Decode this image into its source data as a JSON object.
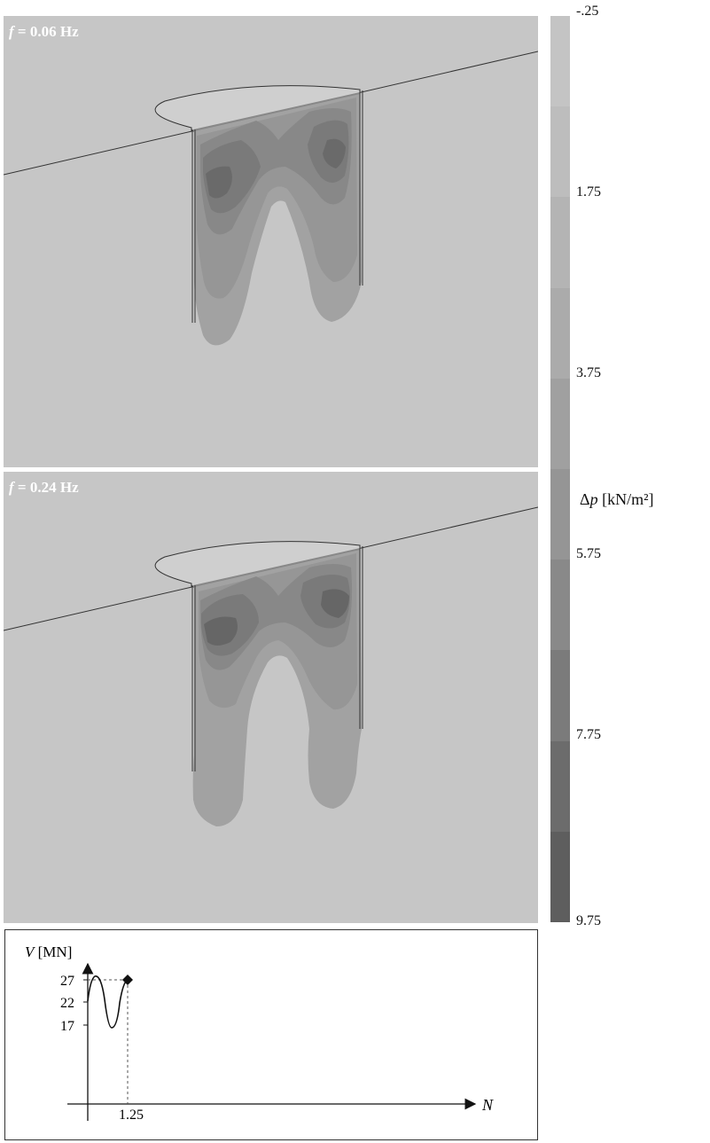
{
  "panels": [
    {
      "label_var": "f",
      "label_rest": " = 0.06 Hz"
    },
    {
      "label_var": "f",
      "label_rest": " = 0.24 Hz"
    }
  ],
  "colorbar": {
    "ticks": [
      "-.25",
      "1.75",
      "3.75",
      "5.75",
      "7.75",
      "9.75"
    ],
    "title_symbol": "Δ",
    "title_var": "p",
    "title_unit": " [kN/m²]",
    "colors": [
      "#c4c4c4",
      "#bdbdbd",
      "#b4b4b4",
      "#ababab",
      "#a0a0a0",
      "#959595",
      "#898989",
      "#7b7b7b",
      "#6c6c6c",
      "#5e5e5e"
    ]
  },
  "graph": {
    "y_label_var": "V",
    "y_label_unit": " [MN]",
    "x_label_var": "N",
    "y_ticks": [
      "27",
      "22",
      "17"
    ],
    "x_tick": "1.25"
  }
}
